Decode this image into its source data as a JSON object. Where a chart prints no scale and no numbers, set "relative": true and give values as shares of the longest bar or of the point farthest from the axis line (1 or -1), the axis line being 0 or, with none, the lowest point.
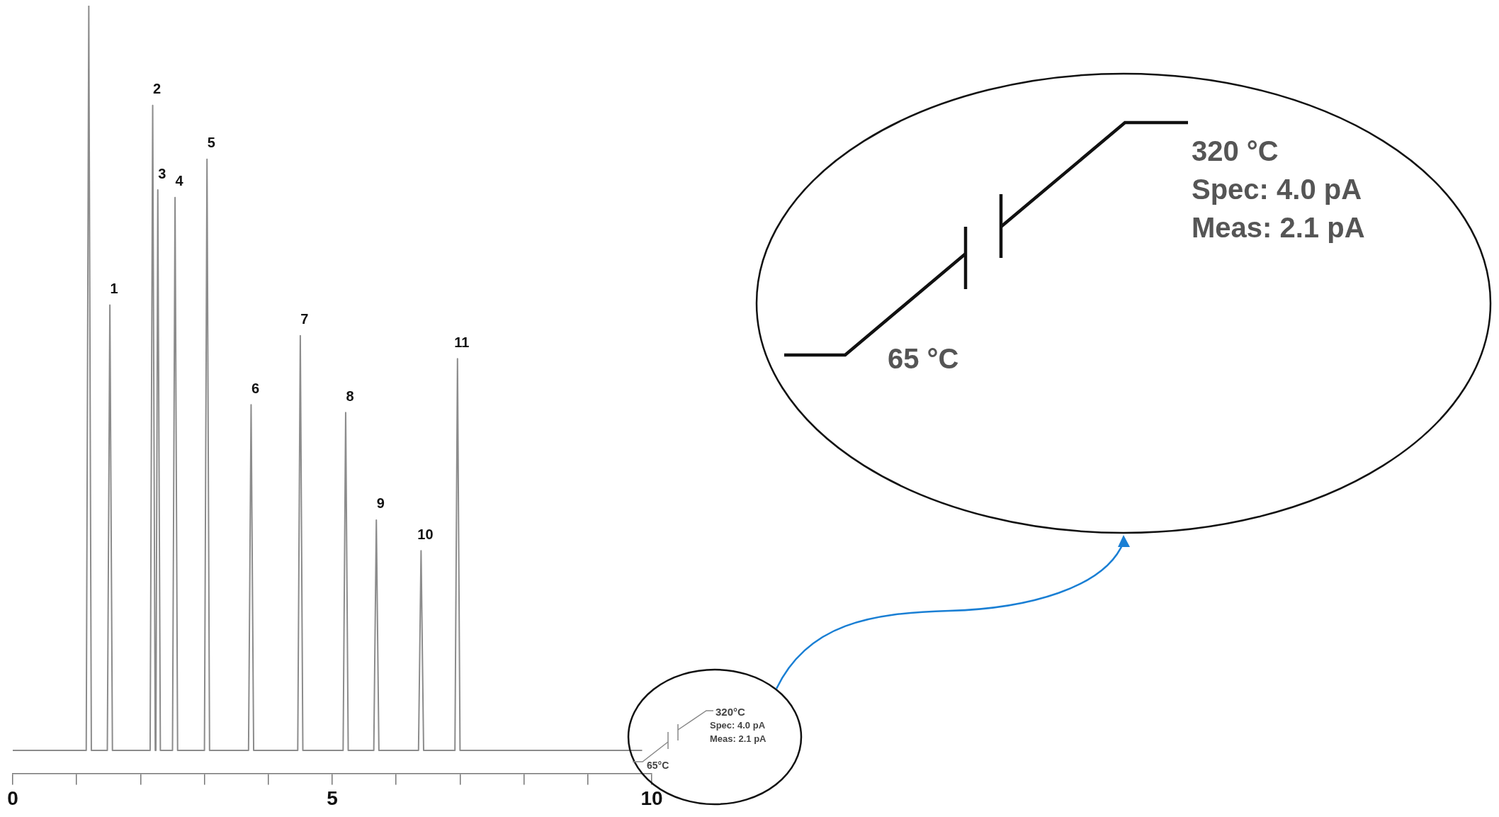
{
  "chart_data": {
    "type": "line",
    "relative": true,
    "grid": false,
    "legend": false,
    "marker": "none",
    "line_style": "solid",
    "xlim": [
      0,
      10
    ],
    "xticks": [
      0,
      {
        "value": 1,
        "label": null
      },
      {
        "value": 2,
        "label": null
      },
      {
        "value": 3,
        "label": null
      },
      {
        "value": 4,
        "label": null
      },
      5,
      {
        "value": 6,
        "label": null
      },
      {
        "value": 7,
        "label": null
      },
      {
        "value": 8,
        "label": null
      },
      {
        "value": 9,
        "label": null
      },
      10
    ],
    "tick_labels": "x",
    "series": [
      {
        "color": "#8c8c8c",
        "x": [
          0,
          1.15,
          1.19,
          1.23,
          1.48,
          1.52,
          1.56,
          2.15,
          2.19,
          2.23,
          2.24,
          2.27,
          2.31,
          2.5,
          2.54,
          2.58,
          3.0,
          3.04,
          3.08,
          3.69,
          3.73,
          3.77,
          4.46,
          4.5,
          4.54,
          5.17,
          5.21,
          5.25,
          5.65,
          5.69,
          5.73,
          6.35,
          6.39,
          6.43,
          6.92,
          6.96,
          7.0,
          9.85
        ],
        "values": [
          0.03,
          0.03,
          1,
          0.03,
          0.03,
          0.61,
          0.03,
          0.03,
          0.87,
          0.03,
          0.03,
          0.76,
          0.03,
          0.03,
          0.75,
          0.03,
          0.03,
          0.8,
          0.03,
          0.03,
          0.48,
          0.03,
          0.03,
          0.57,
          0.03,
          0.03,
          0.47,
          0.03,
          0.03,
          0.33,
          0.03,
          0.03,
          0.29,
          0.03,
          0.03,
          0.54,
          0.03,
          0.03
        ]
      }
    ],
    "annotations": [
      {
        "text": "1",
        "x": 1.52,
        "y": 0.61
      },
      {
        "text": "2",
        "x": 2.19,
        "y": 0.87
      },
      {
        "text": "3",
        "x": 2.27,
        "y": 0.76
      },
      {
        "text": "4",
        "x": 2.54,
        "y": 0.75
      },
      {
        "text": "5",
        "x": 3.04,
        "y": 0.8
      },
      {
        "text": "6",
        "x": 3.73,
        "y": 0.48
      },
      {
        "text": "7",
        "x": 4.5,
        "y": 0.57
      },
      {
        "text": "8",
        "x": 5.21,
        "y": 0.47
      },
      {
        "text": "9",
        "x": 5.69,
        "y": 0.33
      },
      {
        "text": "10",
        "x": 6.39,
        "y": 0.29
      },
      {
        "text": "11",
        "x": 6.96,
        "y": 0.54
      },
      "320°C",
      "Spec: 4.0 pA",
      "Meas: 2.1 pA",
      "65°C",
      "320 °C",
      "Spec: 4.0 pA",
      "Meas: 2.1 pA",
      "65 °C"
    ]
  }
}
